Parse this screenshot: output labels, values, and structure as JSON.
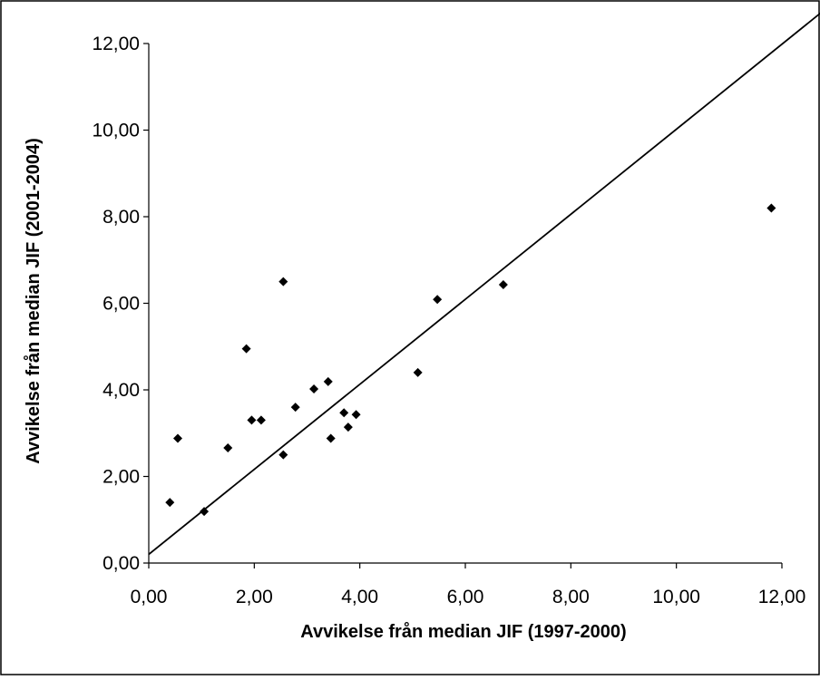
{
  "chart_data": {
    "type": "scatter",
    "title": "",
    "xlabel": "Avvikelse från median JIF (1997-2000)",
    "ylabel": "Avvikelse från median JIF (2001-2004)",
    "xlim": [
      0,
      12
    ],
    "ylim": [
      0,
      12
    ],
    "x_ticks": [
      "0,00",
      "2,00",
      "4,00",
      "6,00",
      "8,00",
      "10,00",
      "12,00"
    ],
    "y_ticks": [
      "0,00",
      "2,00",
      "4,00",
      "6,00",
      "8,00",
      "10,00",
      "12,00"
    ],
    "grid": false,
    "legend": "none",
    "marker": "diamond",
    "colors": {
      "marker": "#000000",
      "line": "#000000",
      "border": "#000000",
      "background": "#ffffff"
    },
    "points": [
      {
        "x": 0.4,
        "y": 1.4
      },
      {
        "x": 0.55,
        "y": 2.88
      },
      {
        "x": 1.05,
        "y": 1.19
      },
      {
        "x": 1.5,
        "y": 2.66
      },
      {
        "x": 1.85,
        "y": 4.95
      },
      {
        "x": 1.95,
        "y": 3.3
      },
      {
        "x": 2.13,
        "y": 3.3
      },
      {
        "x": 2.55,
        "y": 2.5
      },
      {
        "x": 2.55,
        "y": 6.5
      },
      {
        "x": 2.78,
        "y": 3.6
      },
      {
        "x": 3.13,
        "y": 4.02
      },
      {
        "x": 3.4,
        "y": 4.19
      },
      {
        "x": 3.45,
        "y": 2.88
      },
      {
        "x": 3.7,
        "y": 3.47
      },
      {
        "x": 3.78,
        "y": 3.14
      },
      {
        "x": 3.93,
        "y": 3.43
      },
      {
        "x": 5.1,
        "y": 4.4
      },
      {
        "x": 5.47,
        "y": 6.09
      },
      {
        "x": 6.72,
        "y": 6.43
      },
      {
        "x": 11.8,
        "y": 8.2
      }
    ],
    "trendline": {
      "type": "linear",
      "x0": 0,
      "y0": 0.2,
      "slope": 0.982
    }
  }
}
